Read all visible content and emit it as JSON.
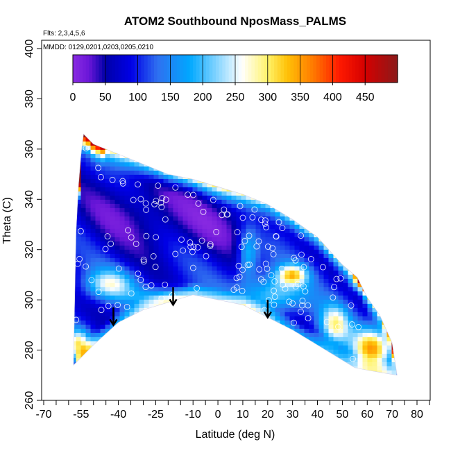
{
  "chart_data": {
    "type": "heatmap",
    "title": "ATOM2 Southbound NposMass_PALMS",
    "flights_label": "Flts: 2,3,4,5,6",
    "mmdd_label": "MMDD: 0129,0201,0203,0205,0210",
    "xlabel": "Latitude (deg N)",
    "ylabel": "Theta (C)",
    "xlim": [
      -70,
      85
    ],
    "ylim": [
      260,
      400
    ],
    "x_ticks": [
      -70,
      -55,
      -40,
      -25,
      -10,
      0,
      10,
      20,
      30,
      40,
      50,
      60,
      70,
      80
    ],
    "x_tick_labels": [
      "-70",
      "-55",
      "-40",
      "-25",
      "-10",
      "0",
      "10",
      "20",
      "30",
      "40",
      "50",
      "60",
      "70",
      "80"
    ],
    "y_ticks": [
      260,
      280,
      300,
      320,
      340,
      360,
      380,
      400
    ],
    "y_tick_labels": [
      "260",
      "280",
      "300",
      "320",
      "340",
      "360",
      "380",
      "400"
    ],
    "grid": false,
    "colorbar": {
      "range": [
        0,
        500
      ],
      "ticks": [
        0,
        50,
        100,
        150,
        200,
        250,
        300,
        350,
        400,
        450
      ],
      "tick_labels": [
        "0",
        "50",
        "100",
        "150",
        "200",
        "250",
        "300",
        "350",
        "400",
        "450"
      ],
      "stops": [
        {
          "v": 0,
          "c": "#8a2be2"
        },
        {
          "v": 25,
          "c": "#6a16d8"
        },
        {
          "v": 50,
          "c": "#0000a8"
        },
        {
          "v": 90,
          "c": "#0000e6"
        },
        {
          "v": 130,
          "c": "#2f6ff0"
        },
        {
          "v": 180,
          "c": "#00a8ff"
        },
        {
          "v": 225,
          "c": "#8fd8ff"
        },
        {
          "v": 260,
          "c": "#ffffff"
        },
        {
          "v": 300,
          "c": "#fff36a"
        },
        {
          "v": 330,
          "c": "#ffc107"
        },
        {
          "v": 370,
          "c": "#ff7a00"
        },
        {
          "v": 410,
          "c": "#ff1a00"
        },
        {
          "v": 450,
          "c": "#d40000"
        },
        {
          "v": 500,
          "c": "#8b1a1a"
        }
      ]
    },
    "arrows": [
      {
        "lat": -42,
        "theta": 296
      },
      {
        "lat": -18,
        "theta": 304
      },
      {
        "lat": 20,
        "theta": 299
      }
    ]
  }
}
